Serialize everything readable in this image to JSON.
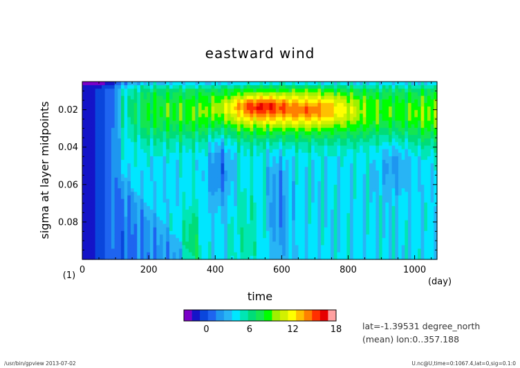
{
  "chart_data": {
    "type": "heatmap",
    "title": "eastward wind",
    "xlabel": "time",
    "ylabel": "sigma at layer midpoints",
    "x_unit": "(day)",
    "y_unit": "(1)",
    "xlim": [
      0,
      1067.4
    ],
    "ylim": [
      0.1,
      0.005
    ],
    "x_ticks": [
      "0",
      "200",
      "400",
      "600",
      "800",
      "1000"
    ],
    "y_ticks": [
      "0.02",
      "0.04",
      "0.06",
      "0.08"
    ],
    "x_tick_values": [
      0,
      200,
      400,
      600,
      800,
      1000
    ],
    "y_tick_values": [
      0.02,
      0.04,
      0.06,
      0.08
    ],
    "colorbar": {
      "labels": [
        "0",
        "6",
        "12",
        "18"
      ],
      "label_values": [
        0,
        6,
        12,
        18
      ],
      "min": -2,
      "max": 18,
      "colors": [
        "#7a00c8",
        "#1414c8",
        "#0a46dc",
        "#1e64f0",
        "#1e96f0",
        "#28b4f5",
        "#00e6ff",
        "#00e6b4",
        "#00dc78",
        "#14e650",
        "#00ff00",
        "#a0f000",
        "#d2f000",
        "#ffff00",
        "#ffc000",
        "#ff8000",
        "#ff3000",
        "#e60000",
        "#ffa0a0"
      ]
    },
    "grid": false,
    "notes": {
      "lat": "lat=-1.39531 degree_north",
      "mean": "(mean) lon:0..357.188"
    }
  },
  "footer": {
    "left": "/usr/bin/gpview   2013-07-02",
    "right": "U.nc@U,time=0:1067.4,lat=0,sig=0.1:0"
  }
}
